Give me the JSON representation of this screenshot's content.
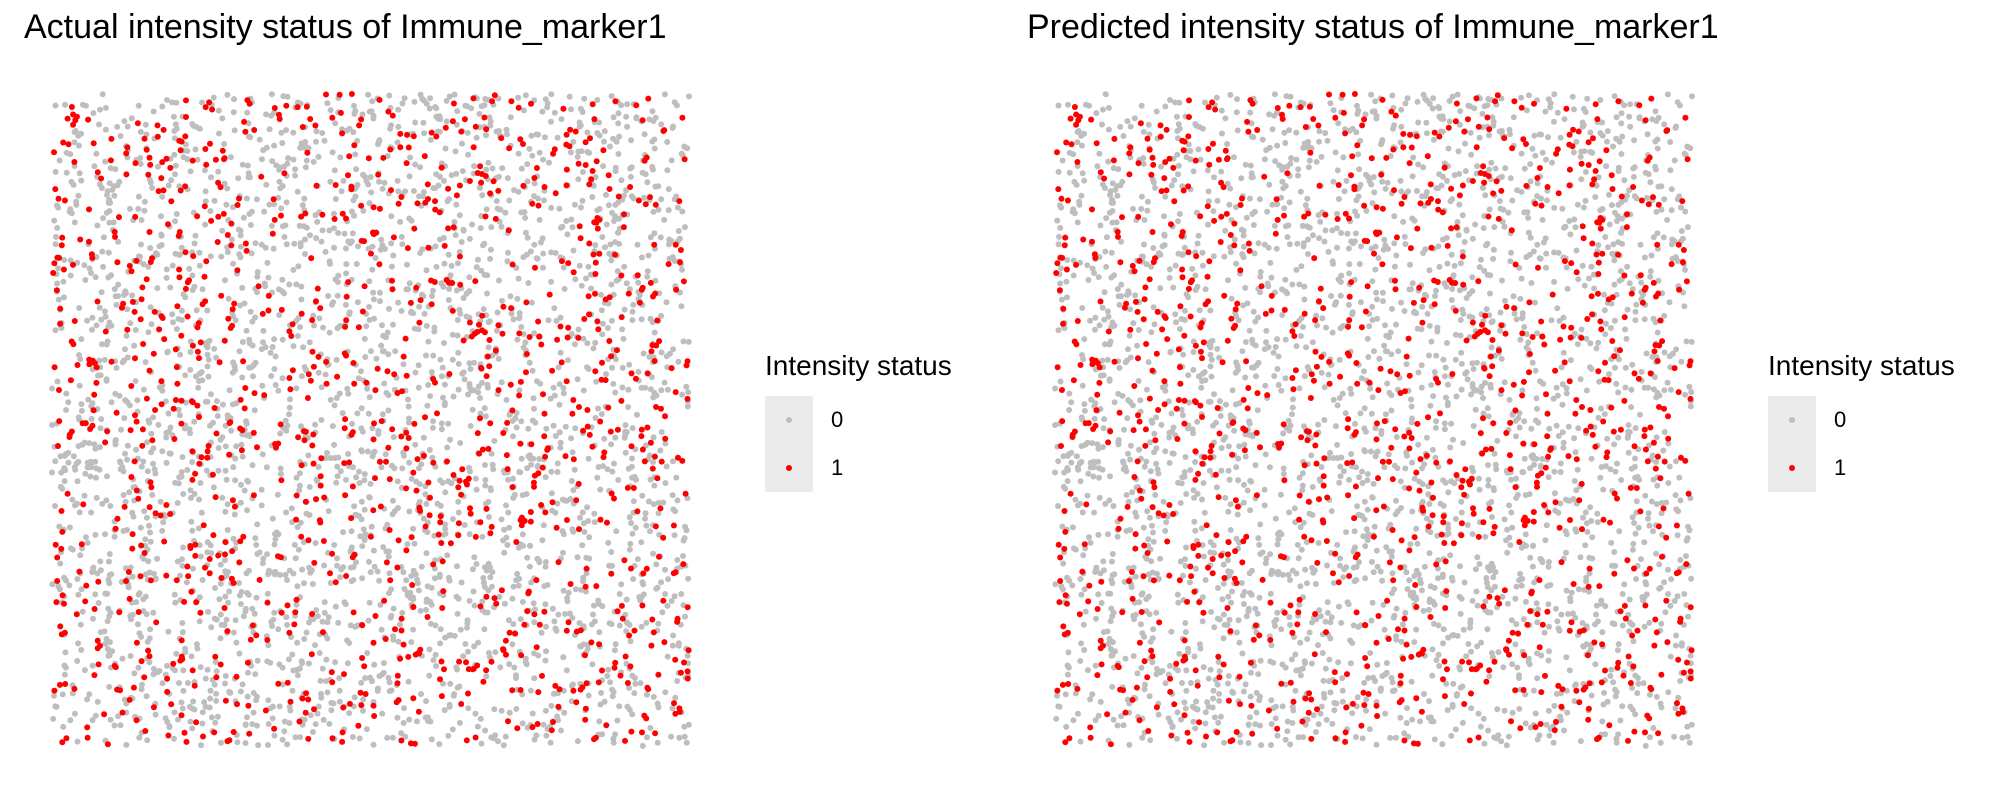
{
  "colors": {
    "status_0": "#bebebe",
    "status_1": "#ff0000"
  },
  "chart_data": [
    {
      "type": "scatter",
      "title": "Actual intensity status of Immune_marker1",
      "xlabel": "",
      "ylabel": "",
      "grid": false,
      "axes_visible": false,
      "legend": {
        "title": "Intensity status",
        "position": "right",
        "entries": [
          "0",
          "1"
        ]
      },
      "series": [
        {
          "name": "0",
          "color": "#bebebe",
          "n_points": 2900
        },
        {
          "name": "1",
          "color": "#ff0000",
          "n_points": 1100
        }
      ]
    },
    {
      "type": "scatter",
      "title": "Predicted intensity status of Immune_marker1",
      "xlabel": "",
      "ylabel": "",
      "grid": false,
      "axes_visible": false,
      "legend": {
        "title": "Intensity status",
        "position": "right",
        "entries": [
          "0",
          "1"
        ]
      },
      "series": [
        {
          "name": "0",
          "color": "#bebebe",
          "n_points": 2900
        },
        {
          "name": "1",
          "color": "#ff0000",
          "n_points": 1100
        }
      ]
    }
  ]
}
